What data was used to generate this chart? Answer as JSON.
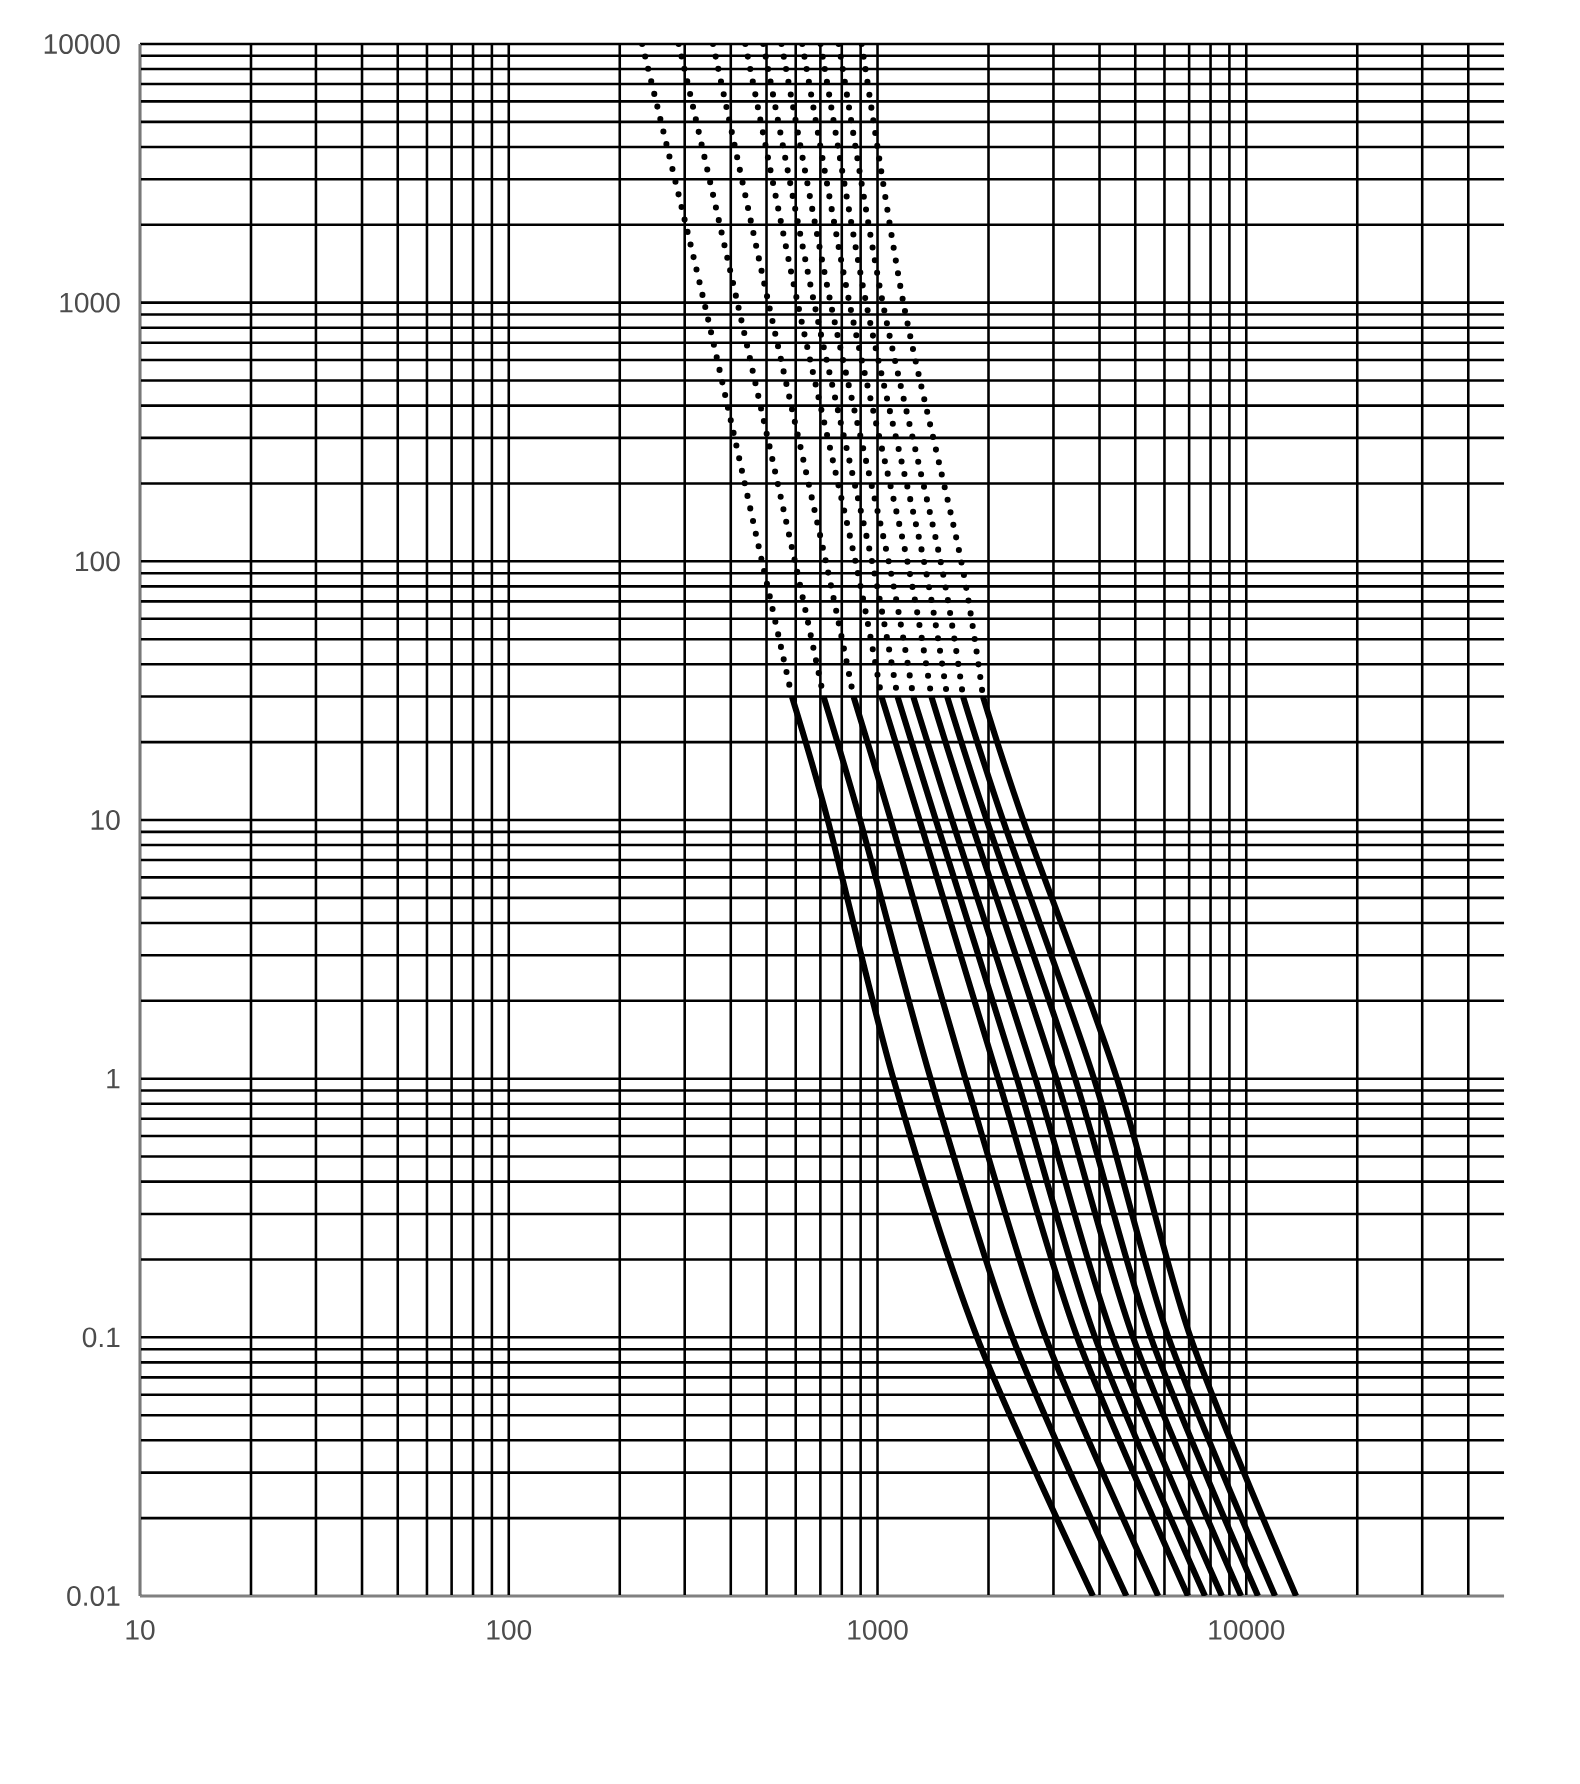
{
  "chart_data": {
    "type": "line",
    "log": "xy",
    "grid": true,
    "marker": "none",
    "xlim": [
      10,
      50000
    ],
    "ylim": [
      0.01,
      10000
    ],
    "xticks": [
      10,
      100,
      1000,
      10000
    ],
    "yticks": [
      0.01,
      0.1,
      1,
      10,
      100,
      1000,
      10000
    ],
    "series": [
      {
        "color": "#000000",
        "line_style": "dotted",
        "x": [
          230,
          339,
          486,
          586
        ],
        "values": [
          10000,
          1000,
          100,
          30
        ]
      },
      {
        "color": "#000000",
        "line_style": "dotted",
        "x": [
          289,
          417,
          597,
          714
        ],
        "values": [
          10000,
          1000,
          100,
          30
        ]
      },
      {
        "color": "#000000",
        "line_style": "dotted",
        "x": [
          358,
          506,
          724,
          861
        ],
        "values": [
          10000,
          1000,
          100,
          30
        ]
      },
      {
        "color": "#000000",
        "line_style": "dotted",
        "x": [
          438,
          607,
          871,
          1025
        ],
        "values": [
          10000,
          1000,
          100,
          30
        ]
      },
      {
        "color": "#000000",
        "line_style": "dotted",
        "x": [
          490,
          673,
          966,
          1133
        ],
        "values": [
          10000,
          1000,
          100,
          30
        ]
      },
      {
        "color": "#000000",
        "line_style": "dotted",
        "x": [
          549,
          746,
          1072,
          1250
        ],
        "values": [
          10000,
          1000,
          100,
          30
        ]
      },
      {
        "color": "#000000",
        "line_style": "dotted",
        "x": [
          625,
          839,
          1205,
          1400
        ],
        "values": [
          10000,
          1000,
          100,
          30
        ]
      },
      {
        "color": "#000000",
        "line_style": "dotted",
        "x": [
          701,
          931,
          1337,
          1545
        ],
        "values": [
          10000,
          1000,
          100,
          30
        ]
      },
      {
        "color": "#000000",
        "line_style": "dotted",
        "x": [
          785,
          1033,
          1483,
          1706
        ],
        "values": [
          10000,
          1000,
          100,
          30
        ]
      },
      {
        "color": "#000000",
        "line_style": "dotted",
        "x": [
          906,
          1175,
          1687,
          1932
        ],
        "values": [
          10000,
          1000,
          100,
          30
        ]
      },
      {
        "color": "#000000",
        "line_style": "solid",
        "x": [
          586,
          733,
          1104,
          1862,
          3840
        ],
        "values": [
          30,
          10,
          1,
          0.1,
          0.01
        ]
      },
      {
        "color": "#000000",
        "line_style": "solid",
        "x": [
          714,
          897,
          1393,
          2323,
          4730
        ],
        "values": [
          30,
          10,
          1,
          0.1,
          0.01
        ]
      },
      {
        "color": "#000000",
        "line_style": "solid",
        "x": [
          861,
          1086,
          1730,
          2858,
          5770
        ],
        "values": [
          30,
          10,
          1,
          0.1,
          0.01
        ]
      },
      {
        "color": "#000000",
        "line_style": "solid",
        "x": [
          1025,
          1300,
          2123,
          3480,
          6950
        ],
        "values": [
          30,
          10,
          1,
          0.1,
          0.01
        ]
      },
      {
        "color": "#000000",
        "line_style": "solid",
        "x": [
          1133,
          1439,
          2388,
          3890,
          7730
        ],
        "values": [
          30,
          10,
          1,
          0.1,
          0.01
        ]
      },
      {
        "color": "#000000",
        "line_style": "solid",
        "x": [
          1250,
          1592,
          2680,
          4345,
          8590
        ],
        "values": [
          30,
          10,
          1,
          0.1,
          0.01
        ]
      },
      {
        "color": "#000000",
        "line_style": "solid",
        "x": [
          1400,
          1786,
          3055,
          4930,
          9680
        ],
        "values": [
          30,
          10,
          1,
          0.1,
          0.01
        ]
      },
      {
        "color": "#000000",
        "line_style": "solid",
        "x": [
          1545,
          1977,
          3435,
          5510,
          10760
        ],
        "values": [
          30,
          10,
          1,
          0.1,
          0.01
        ]
      },
      {
        "color": "#000000",
        "line_style": "solid",
        "x": [
          1706,
          2188,
          3864,
          6150,
          11970
        ],
        "values": [
          30,
          10,
          1,
          0.1,
          0.01
        ]
      },
      {
        "color": "#000000",
        "line_style": "solid",
        "x": [
          1932,
          2483,
          4460,
          7060,
          13650
        ],
        "values": [
          30,
          10,
          1,
          0.1,
          0.01
        ]
      }
    ]
  }
}
